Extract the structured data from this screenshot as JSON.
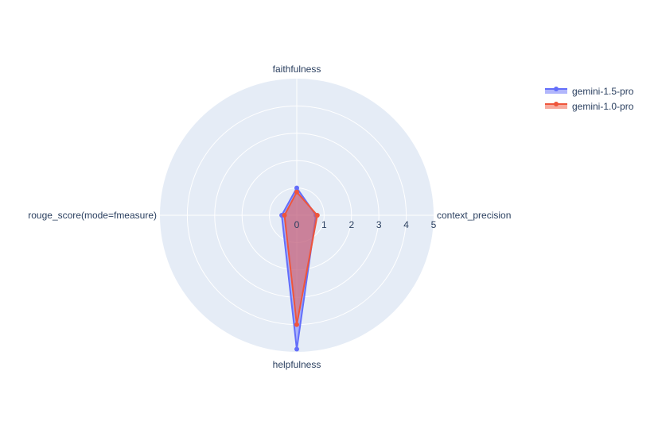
{
  "chart_data": {
    "type": "radar",
    "axes": [
      "faithfulness",
      "context_precision",
      "helpfulness",
      "rouge_score(mode=fmeasure)"
    ],
    "radial_range": [
      0,
      5
    ],
    "radial_ticks": [
      "0",
      "1",
      "2",
      "3",
      "4",
      "5"
    ],
    "grid": true,
    "legend_position": "top-right",
    "series": [
      {
        "name": "gemini-1.5-pro",
        "values": [
          1.0,
          0.7,
          4.9,
          0.55
        ],
        "color": "#636efa",
        "fill": "rgba(99,110,250,0.5)"
      },
      {
        "name": "gemini-1.0-pro",
        "values": [
          0.85,
          0.75,
          4.0,
          0.45
        ],
        "color": "#ef553b",
        "fill": "rgba(239,85,59,0.5)"
      }
    ],
    "colors": {
      "polar_background": "#e5ecf6",
      "grid": "#ffffff",
      "text": "#2a3f5f"
    }
  }
}
